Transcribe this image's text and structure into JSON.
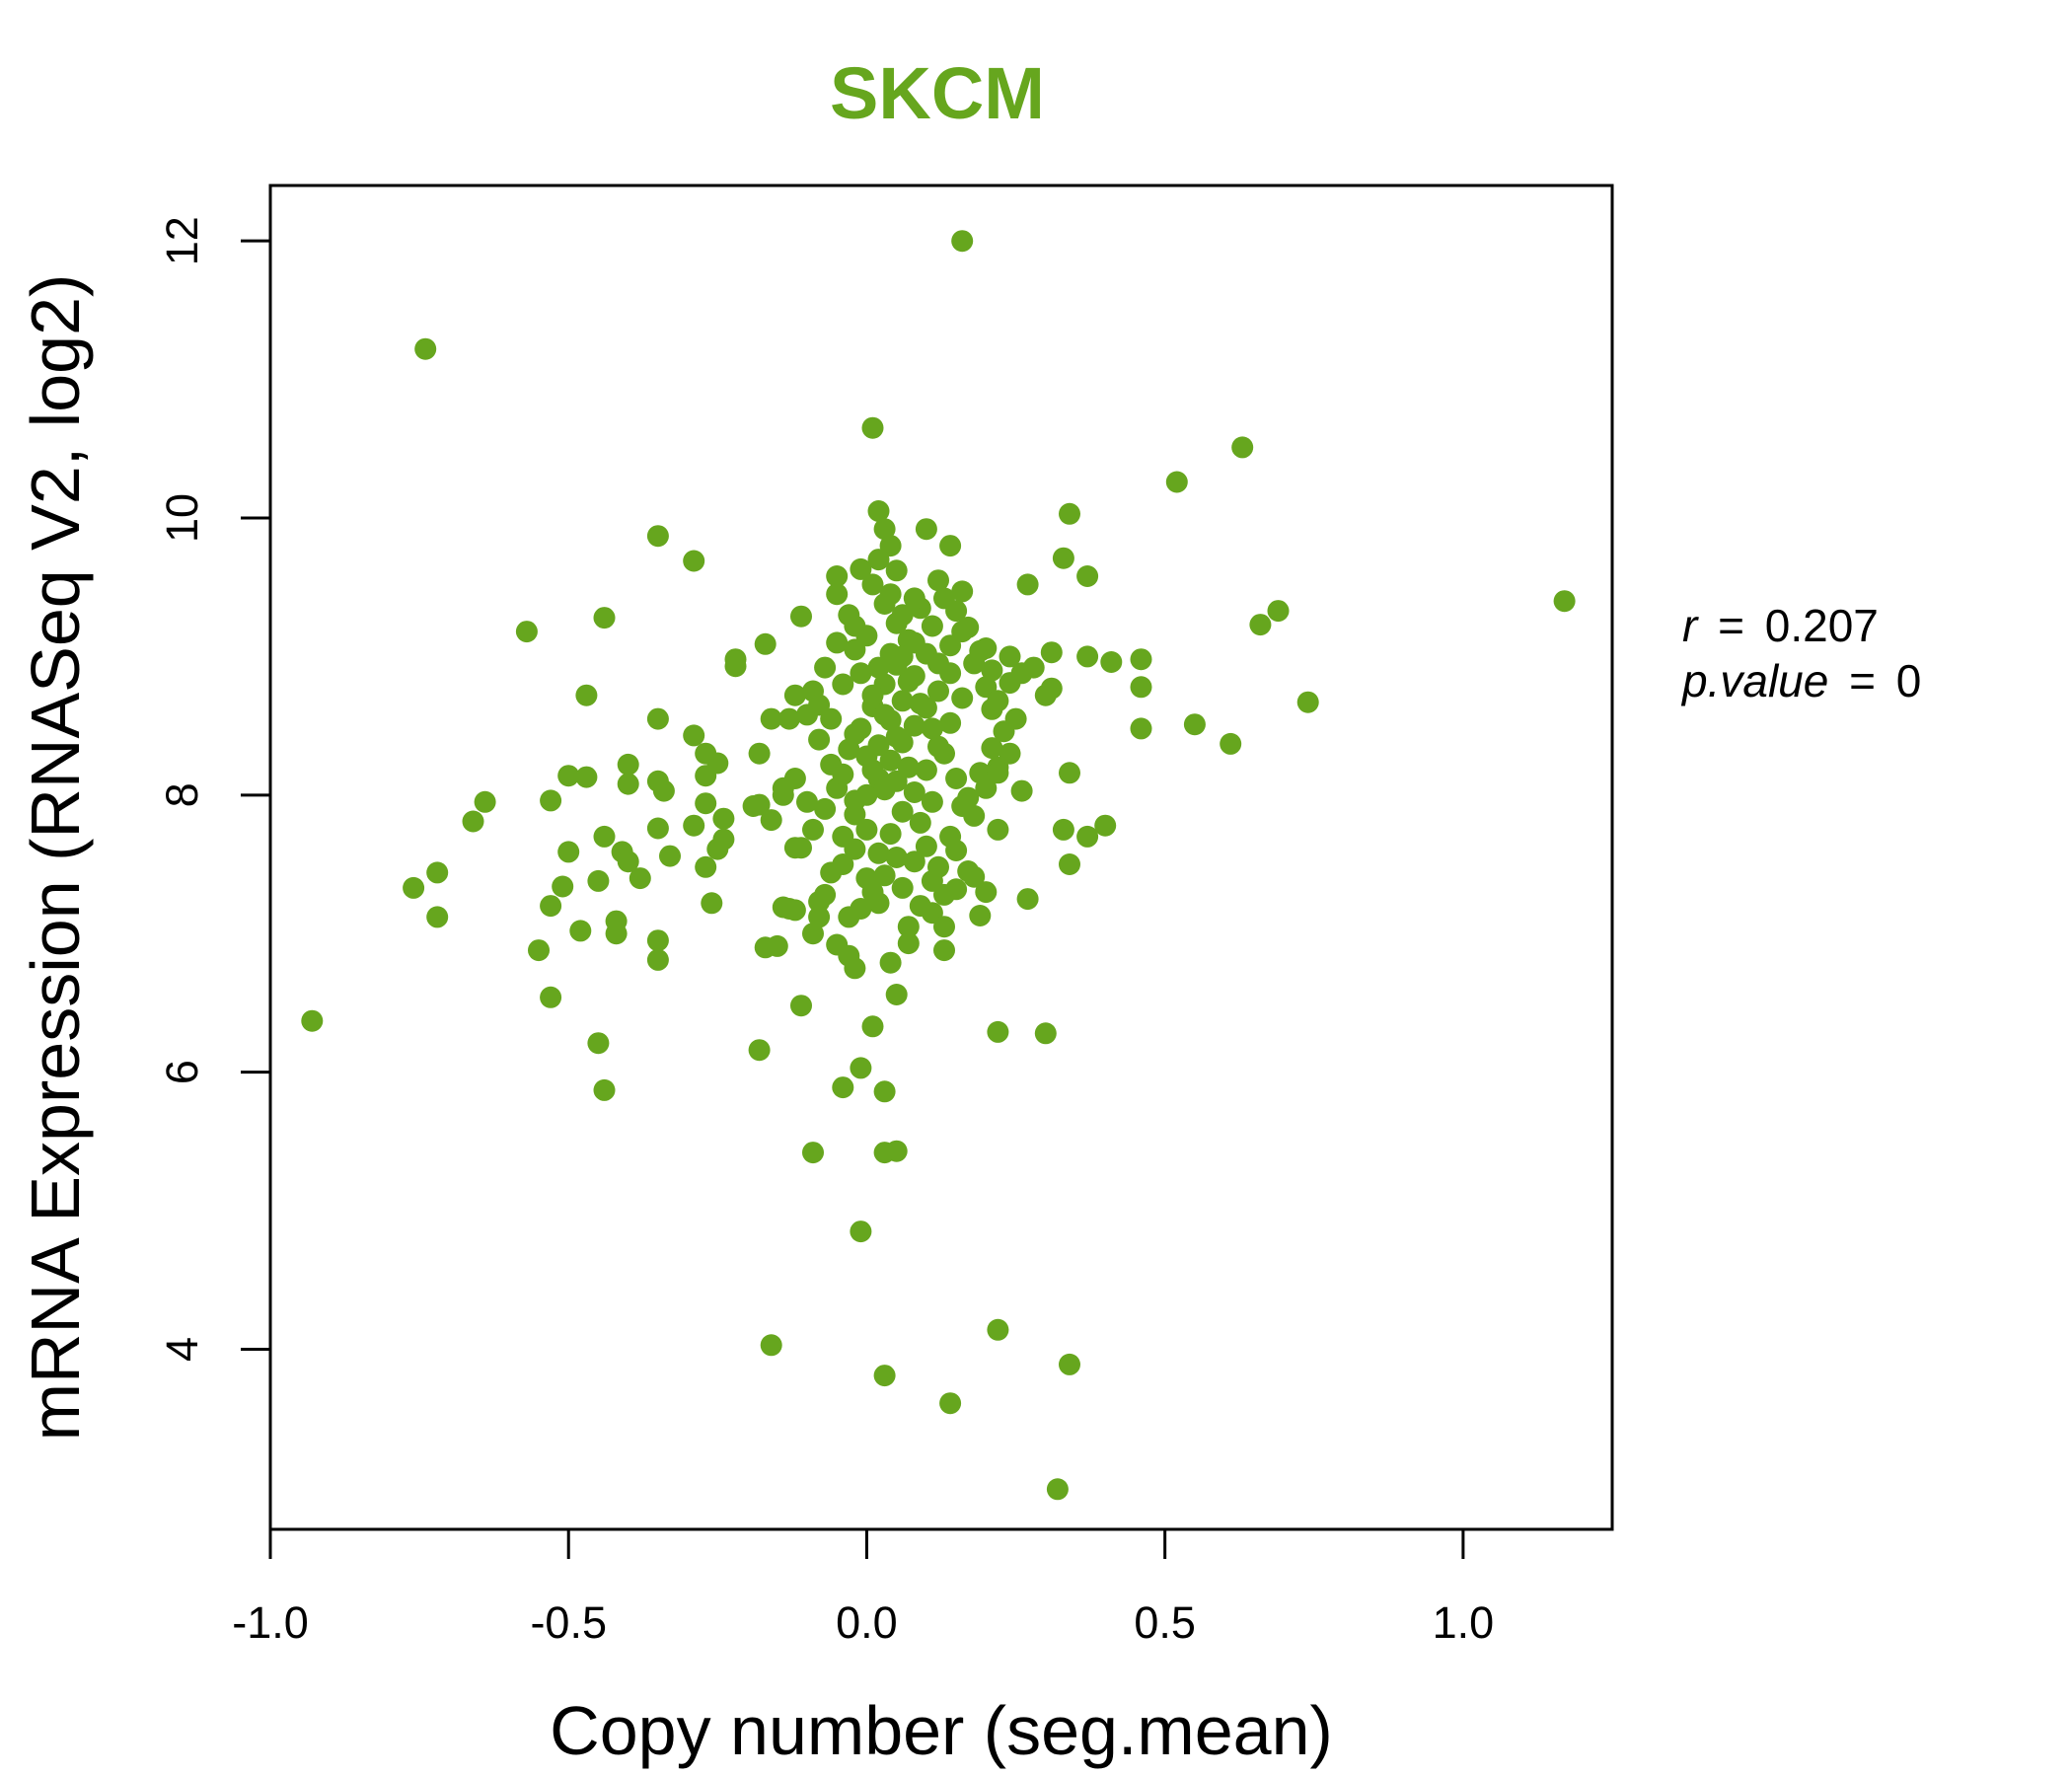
{
  "chart_data": {
    "type": "scatter",
    "title": "SKCM",
    "xlabel": "Copy number (seg.mean)",
    "ylabel": "mRNA Expression (RNASeq V2, log2)",
    "xlim": [
      -1.0,
      1.25
    ],
    "ylim": [
      2.7,
      12.4
    ],
    "x_ticks": [
      -1.0,
      -0.5,
      0.0,
      0.5,
      1.0
    ],
    "x_tick_labels": [
      "-1.0",
      "-0.5",
      "0.0",
      "0.5",
      "1.0"
    ],
    "y_ticks": [
      4,
      6,
      8,
      10,
      12
    ],
    "y_tick_labels": [
      "4",
      "6",
      "8",
      "10",
      "12"
    ],
    "point_color": "#66A61E",
    "stats": {
      "r_label": "r",
      "r_value": "0.207",
      "p_label": "p.value",
      "p_value": "0",
      "eq": "="
    },
    "points": [
      [
        0.16,
        12.0
      ],
      [
        -0.74,
        11.22
      ],
      [
        0.01,
        10.65
      ],
      [
        0.63,
        10.51
      ],
      [
        0.52,
        10.26
      ],
      [
        0.02,
        10.05
      ],
      [
        0.34,
        10.03
      ],
      [
        0.1,
        9.92
      ],
      [
        -0.35,
        9.87
      ],
      [
        0.14,
        9.8
      ],
      [
        0.04,
        9.8
      ],
      [
        -0.29,
        9.69
      ],
      [
        0.33,
        9.71
      ],
      [
        0.05,
        9.62
      ],
      [
        -0.05,
        9.58
      ],
      [
        0.37,
        9.58
      ],
      [
        0.27,
        9.52
      ],
      [
        0.16,
        9.47
      ],
      [
        -0.05,
        9.45
      ],
      [
        1.17,
        9.4
      ],
      [
        0.69,
        9.33
      ],
      [
        -0.44,
        9.28
      ],
      [
        -0.11,
        9.29
      ],
      [
        0.66,
        9.23
      ],
      [
        -0.57,
        9.18
      ],
      [
        -0.17,
        9.09
      ],
      [
        0.31,
        9.03
      ],
      [
        0.37,
        9.0
      ],
      [
        0.46,
        8.98
      ],
      [
        -0.22,
        8.98
      ],
      [
        0.41,
        8.96
      ],
      [
        -0.22,
        8.93
      ],
      [
        0.31,
        8.77
      ],
      [
        0.46,
        8.78
      ],
      [
        -0.47,
        8.72
      ],
      [
        0.74,
        8.67
      ],
      [
        0.21,
        8.62
      ],
      [
        -0.35,
        8.55
      ],
      [
        -0.16,
        8.55
      ],
      [
        0.55,
        8.51
      ],
      [
        0.46,
        8.48
      ],
      [
        -0.29,
        8.43
      ],
      [
        0.61,
        8.37
      ],
      [
        -0.27,
        8.3
      ],
      [
        -0.18,
        8.3
      ],
      [
        -0.25,
        8.23
      ],
      [
        -0.4,
        8.22
      ],
      [
        0.34,
        8.16
      ],
      [
        -0.5,
        8.14
      ],
      [
        -0.47,
        8.13
      ],
      [
        -0.35,
        8.1
      ],
      [
        -0.27,
        8.14
      ],
      [
        -0.14,
        8.05
      ],
      [
        0.26,
        8.03
      ],
      [
        -0.34,
        8.03
      ],
      [
        -0.4,
        8.08
      ],
      [
        -0.64,
        7.95
      ],
      [
        -0.53,
        7.96
      ],
      [
        -0.27,
        7.94
      ],
      [
        -0.19,
        7.92
      ],
      [
        -0.18,
        7.93
      ],
      [
        -0.24,
        7.83
      ],
      [
        0.4,
        7.78
      ],
      [
        -0.29,
        7.78
      ],
      [
        -0.35,
        7.76
      ],
      [
        -0.66,
        7.81
      ],
      [
        0.22,
        7.75
      ],
      [
        0.33,
        7.75
      ],
      [
        -0.44,
        7.7
      ],
      [
        -0.24,
        7.68
      ],
      [
        0.37,
        7.7
      ],
      [
        -0.25,
        7.61
      ],
      [
        -0.5,
        7.59
      ],
      [
        -0.41,
        7.59
      ],
      [
        -0.33,
        7.56
      ],
      [
        -0.4,
        7.52
      ],
      [
        0.34,
        7.5
      ],
      [
        -0.27,
        7.48
      ],
      [
        -0.72,
        7.44
      ],
      [
        -0.38,
        7.4
      ],
      [
        -0.45,
        7.38
      ],
      [
        -0.76,
        7.33
      ],
      [
        -0.51,
        7.34
      ],
      [
        -0.26,
        7.22
      ],
      [
        0.27,
        7.25
      ],
      [
        -0.53,
        7.2
      ],
      [
        -0.13,
        7.18
      ],
      [
        -0.14,
        7.19
      ],
      [
        -0.12,
        7.17
      ],
      [
        -0.08,
        7.23
      ],
      [
        0.19,
        7.13
      ],
      [
        -0.72,
        7.12
      ],
      [
        -0.42,
        7.09
      ],
      [
        -0.08,
        7.12
      ],
      [
        -0.48,
        7.02
      ],
      [
        -0.42,
        7.0
      ],
      [
        -0.35,
        6.95
      ],
      [
        -0.55,
        6.88
      ],
      [
        -0.17,
        6.9
      ],
      [
        -0.15,
        6.91
      ],
      [
        -0.35,
        6.81
      ],
      [
        0.13,
        6.88
      ],
      [
        -0.53,
        6.54
      ],
      [
        -0.11,
        6.48
      ],
      [
        -0.93,
        6.37
      ],
      [
        0.22,
        6.29
      ],
      [
        0.3,
        6.28
      ],
      [
        -0.45,
        6.21
      ],
      [
        -0.18,
        6.16
      ],
      [
        0.01,
        6.33
      ],
      [
        -0.01,
        6.03
      ],
      [
        -0.04,
        5.89
      ],
      [
        0.03,
        5.86
      ],
      [
        -0.44,
        5.87
      ],
      [
        -0.09,
        5.42
      ],
      [
        0.03,
        5.42
      ],
      [
        0.05,
        5.43
      ],
      [
        -0.01,
        4.85
      ],
      [
        0.22,
        4.14
      ],
      [
        -0.16,
        4.03
      ],
      [
        0.34,
        3.89
      ],
      [
        0.03,
        3.81
      ],
      [
        0.14,
        3.61
      ],
      [
        0.32,
        2.99
      ],
      [
        0.05,
        6.56
      ],
      [
        -0.03,
        6.84
      ],
      [
        0.04,
        6.79
      ],
      [
        -0.02,
        6.75
      ],
      [
        0.07,
        6.93
      ],
      [
        0.11,
        7.15
      ],
      [
        0.13,
        7.05
      ],
      [
        0.15,
        7.32
      ],
      [
        0.18,
        7.41
      ],
      [
        0.2,
        7.3
      ],
      [
        -0.06,
        7.44
      ],
      [
        -0.04,
        7.5
      ],
      [
        -0.02,
        7.61
      ],
      [
        0.0,
        7.4
      ],
      [
        0.02,
        7.22
      ],
      [
        0.06,
        7.33
      ],
      [
        0.08,
        7.52
      ],
      [
        0.1,
        7.63
      ],
      [
        0.12,
        7.48
      ],
      [
        0.14,
        7.7
      ],
      [
        0.16,
        7.92
      ],
      [
        0.18,
        7.85
      ],
      [
        0.2,
        8.05
      ],
      [
        0.22,
        8.2
      ],
      [
        0.24,
        8.3
      ],
      [
        0.23,
        8.46
      ],
      [
        0.25,
        8.55
      ],
      [
        0.24,
        8.81
      ],
      [
        0.21,
        8.9
      ],
      [
        0.19,
        9.04
      ],
      [
        0.17,
        9.21
      ],
      [
        0.15,
        9.33
      ],
      [
        0.13,
        9.42
      ],
      [
        0.11,
        9.22
      ],
      [
        0.09,
        9.35
      ],
      [
        0.07,
        9.12
      ],
      [
        0.05,
        9.24
      ],
      [
        0.03,
        9.38
      ],
      [
        0.01,
        9.52
      ],
      [
        -0.01,
        9.63
      ],
      [
        -0.03,
        9.3
      ],
      [
        -0.05,
        9.1
      ],
      [
        -0.07,
        8.92
      ],
      [
        -0.09,
        8.75
      ],
      [
        -0.1,
        8.58
      ],
      [
        -0.08,
        8.4
      ],
      [
        -0.06,
        8.22
      ],
      [
        -0.05,
        8.05
      ],
      [
        -0.07,
        7.9
      ],
      [
        -0.09,
        7.75
      ],
      [
        -0.11,
        7.62
      ],
      [
        -0.04,
        7.7
      ],
      [
        -0.02,
        7.86
      ],
      [
        0.0,
        8.0
      ],
      [
        0.02,
        8.12
      ],
      [
        0.04,
        8.25
      ],
      [
        0.06,
        8.38
      ],
      [
        0.08,
        8.5
      ],
      [
        0.1,
        8.63
      ],
      [
        0.12,
        8.75
      ],
      [
        0.14,
        8.88
      ],
      [
        0.16,
        8.7
      ],
      [
        0.14,
        8.52
      ],
      [
        0.12,
        8.35
      ],
      [
        0.1,
        8.18
      ],
      [
        0.08,
        8.02
      ],
      [
        0.06,
        7.88
      ],
      [
        0.04,
        7.72
      ],
      [
        0.02,
        7.58
      ],
      [
        0.0,
        7.75
      ],
      [
        -0.02,
        7.96
      ],
      [
        -0.04,
        8.15
      ],
      [
        -0.03,
        8.33
      ],
      [
        -0.01,
        8.48
      ],
      [
        0.01,
        8.64
      ],
      [
        0.03,
        8.8
      ],
      [
        0.05,
        8.94
      ],
      [
        0.07,
        8.82
      ],
      [
        0.09,
        8.66
      ],
      [
        0.11,
        8.48
      ],
      [
        0.13,
        8.3
      ],
      [
        0.15,
        8.12
      ],
      [
        0.17,
        7.98
      ],
      [
        0.19,
        8.16
      ],
      [
        0.21,
        8.34
      ],
      [
        0.09,
        7.8
      ],
      [
        0.11,
        7.95
      ],
      [
        0.07,
        8.2
      ],
      [
        0.05,
        8.42
      ],
      [
        0.03,
        8.58
      ],
      [
        0.01,
        8.72
      ],
      [
        -0.01,
        8.88
      ],
      [
        0.02,
        8.36
      ],
      [
        0.04,
        8.54
      ],
      [
        0.06,
        8.68
      ],
      [
        0.08,
        8.86
      ],
      [
        0.0,
        8.28
      ],
      [
        -0.02,
        8.44
      ],
      [
        0.01,
        8.18
      ],
      [
        0.03,
        8.04
      ],
      [
        0.05,
        8.1
      ],
      [
        0.02,
        8.92
      ],
      [
        0.04,
        9.02
      ],
      [
        0.0,
        9.15
      ],
      [
        -0.02,
        9.05
      ],
      [
        0.06,
        9.0
      ],
      [
        0.08,
        9.1
      ],
      [
        0.1,
        9.02
      ],
      [
        0.12,
        8.95
      ],
      [
        0.18,
        8.95
      ],
      [
        0.2,
        8.78
      ],
      [
        0.22,
        8.68
      ],
      [
        0.26,
        8.88
      ],
      [
        0.28,
        8.92
      ],
      [
        0.3,
        8.72
      ],
      [
        0.15,
        7.6
      ],
      [
        0.17,
        7.45
      ],
      [
        0.13,
        7.28
      ],
      [
        0.11,
        7.38
      ],
      [
        0.09,
        7.2
      ],
      [
        0.07,
        7.05
      ],
      [
        0.05,
        7.55
      ],
      [
        0.03,
        7.42
      ],
      [
        0.01,
        7.3
      ],
      [
        -0.01,
        7.18
      ],
      [
        -0.03,
        7.12
      ],
      [
        -0.05,
        6.92
      ],
      [
        -0.07,
        7.28
      ],
      [
        -0.09,
        7.0
      ],
      [
        -0.12,
        7.62
      ],
      [
        -0.14,
        8.0
      ],
      [
        -0.16,
        7.82
      ],
      [
        -0.12,
        8.12
      ],
      [
        -0.1,
        7.95
      ],
      [
        -0.06,
        8.55
      ],
      [
        -0.08,
        8.65
      ],
      [
        -0.12,
        8.72
      ],
      [
        -0.13,
        8.55
      ],
      [
        -0.04,
        8.8
      ],
      [
        -0.02,
        9.22
      ],
      [
        0.04,
        9.45
      ],
      [
        0.02,
        9.7
      ],
      [
        0.03,
        9.92
      ],
      [
        0.06,
        9.3
      ],
      [
        0.08,
        9.42
      ],
      [
        0.12,
        9.55
      ],
      [
        0.14,
        9.08
      ],
      [
        0.16,
        9.18
      ],
      [
        0.2,
        9.06
      ],
      [
        0.24,
        9.0
      ],
      [
        0.22,
        8.16
      ]
    ]
  }
}
